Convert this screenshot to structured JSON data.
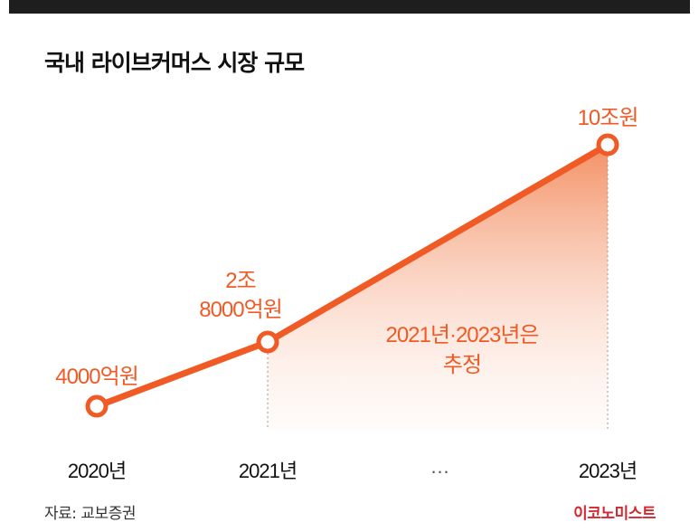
{
  "chart_data": {
    "type": "line",
    "title": "국내 라이브커머스 시장 규모",
    "unit": "억원",
    "categories": [
      "2020년",
      "2021년",
      "…",
      "2023년"
    ],
    "points": [
      {
        "x": "2020년",
        "value": 4000,
        "label": "4000억원"
      },
      {
        "x": "2021년",
        "value": 28000,
        "label_line1": "2조",
        "label_line2": "8000억원"
      },
      {
        "x": "2023년",
        "value": 100000,
        "label": "10조원"
      }
    ],
    "annotation": {
      "line1": "2021년·2023년은",
      "line2": "추정"
    }
  },
  "footer": {
    "source": "자료: 교보증권",
    "brand": "이코노미스트"
  },
  "colors": {
    "line": "#f05a24",
    "label": "#f05a24",
    "area_top": "#f38a5c",
    "text_dark": "#111111",
    "brand": "#d7262e"
  }
}
